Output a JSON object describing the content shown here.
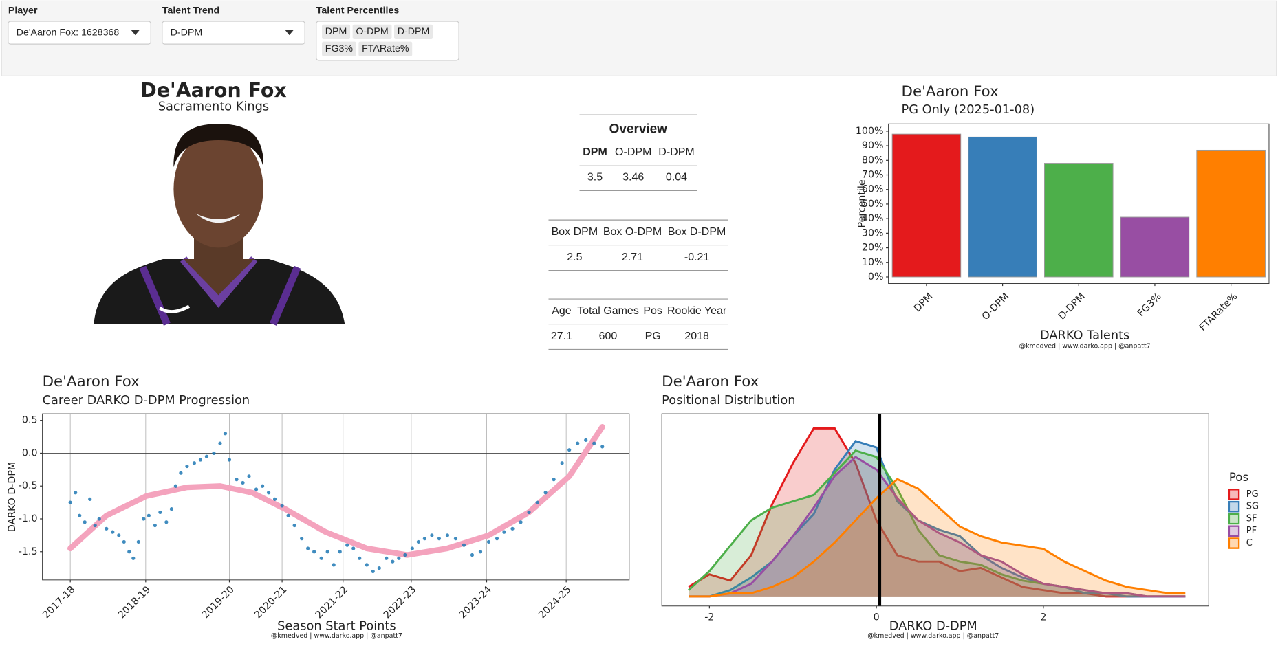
{
  "controls": {
    "player": {
      "label": "Player",
      "value": "De'Aaron Fox: 1628368"
    },
    "trend": {
      "label": "Talent Trend",
      "value": "D-DPM"
    },
    "percentiles": {
      "label": "Talent Percentiles",
      "selected": [
        "DPM",
        "O-DPM",
        "D-DPM",
        "FG3%",
        "FTARate%"
      ]
    }
  },
  "player": {
    "name": "De'Aaron Fox",
    "team": "Sacramento Kings"
  },
  "tables": [
    {
      "title": "Overview",
      "header": [
        "DPM",
        "O-DPM",
        "D-DPM"
      ],
      "rows": [
        [
          3.5,
          3.46,
          0.04
        ]
      ]
    },
    {
      "header": [
        "Box DPM",
        "Box O-DPM",
        "Box D-DPM"
      ],
      "rows": [
        [
          2.5,
          2.71,
          -0.21
        ]
      ]
    },
    {
      "header": [
        "Age",
        "Total Games",
        "Pos",
        "Rookie Year"
      ],
      "rows": [
        [
          27.1,
          600,
          "PG",
          2018
        ]
      ]
    }
  ],
  "chart_data": [
    {
      "type": "bar",
      "title": "De'Aaron Fox",
      "subtitle": "PG Only (2025-01-08)",
      "x_label": "DARKO Talents",
      "y_label": "Percentile",
      "caption": "@kmedved | www.darko.app | @anpatt7",
      "categories": [
        "DPM",
        "O-DPM",
        "D-DPM",
        "FG3%",
        "FTARate%"
      ],
      "values": [
        98,
        96,
        78,
        41,
        87
      ],
      "colors": [
        "#e41a1c",
        "#377eb8",
        "#4daf4a",
        "#984ea3",
        "#ff7f00"
      ],
      "ylim": [
        -4.5,
        105
      ],
      "yticks": [
        {
          "value": 0,
          "label": "0%"
        },
        {
          "value": 10,
          "label": "10%"
        },
        {
          "value": 20,
          "label": "20%"
        },
        {
          "value": 30,
          "label": "30%"
        },
        {
          "value": 40,
          "label": "40%"
        },
        {
          "value": 50,
          "label": "50%"
        },
        {
          "value": 60,
          "label": "60%"
        },
        {
          "value": 70,
          "label": "70%"
        },
        {
          "value": 80,
          "label": "80%"
        },
        {
          "value": 90,
          "label": "90%"
        },
        {
          "value": 100,
          "label": "100%"
        }
      ],
      "grid": false
    },
    {
      "type": "scatter",
      "title": "De'Aaron Fox",
      "subtitle": "Career DARKO D-DPM Progression",
      "x_label": "Season Start Points",
      "y_label": "DARKO D-DPM",
      "caption": "@kmedved | www.darko.app | @anpatt7",
      "color": "#1f78b4",
      "x": [
        0,
        5,
        9,
        14,
        19,
        24,
        28,
        35,
        41,
        47,
        52,
        57,
        61,
        66,
        71,
        76,
        82,
        87,
        93,
        98,
        102,
        107,
        113,
        120,
        126,
        132,
        139,
        145,
        150,
        154,
        161,
        167,
        173,
        180,
        186,
        192,
        198,
        205,
        211,
        217,
        224,
        230,
        236,
        243,
        249,
        255,
        261,
        268,
        274,
        280,
        287,
        293,
        299,
        306,
        312,
        318,
        324,
        331,
        337,
        343,
        350,
        357,
        365,
        373,
        381,
        389,
        397,
        405,
        413,
        420,
        428,
        436,
        444,
        452,
        460,
        468,
        476,
        483,
        491,
        499,
        507,
        515
      ],
      "values": [
        -0.75,
        -0.6,
        -0.95,
        -1.05,
        -0.7,
        -1.1,
        -1.0,
        -1.15,
        -1.2,
        -1.25,
        -1.35,
        -1.5,
        -1.6,
        -1.35,
        -1.0,
        -0.95,
        -1.1,
        -0.9,
        -1.05,
        -0.85,
        -0.5,
        -0.3,
        -0.2,
        -0.15,
        -0.1,
        -0.05,
        0.0,
        0.15,
        0.3,
        -0.1,
        -0.4,
        -0.45,
        -0.35,
        -0.55,
        -0.5,
        -0.6,
        -0.7,
        -0.8,
        -0.95,
        -1.1,
        -1.3,
        -1.45,
        -1.5,
        -1.6,
        -1.5,
        -1.7,
        -1.5,
        -1.4,
        -1.45,
        -1.6,
        -1.7,
        -1.8,
        -1.75,
        -1.6,
        -1.65,
        -1.6,
        -1.55,
        -1.45,
        -1.35,
        -1.3,
        -1.25,
        -1.3,
        -1.25,
        -1.3,
        -1.4,
        -1.55,
        -1.5,
        -1.35,
        -1.3,
        -1.2,
        -1.15,
        -1.05,
        -0.9,
        -0.75,
        -0.6,
        -0.4,
        -0.15,
        0.05,
        0.15,
        0.2,
        0.15,
        0.1
      ],
      "trend": {
        "color": "#f4a3bd",
        "x": [
          0,
          35,
          74,
          113,
          145,
          176,
          208,
          247,
          287,
          326,
          365,
          405,
          444,
          483,
          515
        ],
        "values": [
          -1.45,
          -0.95,
          -0.65,
          -0.52,
          -0.5,
          -0.6,
          -0.85,
          -1.2,
          -1.45,
          -1.55,
          -1.45,
          -1.25,
          -0.9,
          -0.35,
          0.4
        ]
      },
      "hline": 0,
      "xlim": [
        -27,
        541
      ],
      "ylim": [
        -1.93,
        0.6
      ],
      "xticks": [
        {
          "value": 0,
          "label": "2017-18"
        },
        {
          "value": 73,
          "label": "2018-19"
        },
        {
          "value": 154,
          "label": "2019-20"
        },
        {
          "value": 205,
          "label": "2020-21"
        },
        {
          "value": 264,
          "label": "2021-22"
        },
        {
          "value": 330,
          "label": "2022-23"
        },
        {
          "value": 403,
          "label": "2023-24"
        },
        {
          "value": 480,
          "label": "2024-25"
        }
      ],
      "yticks": [
        0.5,
        {
          "value": 0,
          "label": "0.0"
        },
        -0.5,
        {
          "value": -1,
          "label": "-1.0"
        },
        -1.5
      ],
      "grid": true
    },
    {
      "type": "density",
      "title": "De'Aaron Fox",
      "subtitle": "Positional Distribution",
      "x_label": "DARKO D-DPM",
      "caption": "@kmedved | www.darko.app | @anpatt7",
      "legend_title": "Pos",
      "x": [
        -2.25,
        -2,
        -1.75,
        -1.5,
        -1.25,
        -1,
        -0.75,
        -0.5,
        -0.25,
        0,
        0.25,
        0.5,
        0.75,
        1,
        1.25,
        1.5,
        1.75,
        2,
        2.25,
        2.5,
        2.75,
        3,
        3.25,
        3.5,
        3.7
      ],
      "series": [
        {
          "name": "PG",
          "color": "#e41a1c",
          "values": [
            0.03,
            0.07,
            0.05,
            0.13,
            0.29,
            0.42,
            0.53,
            0.53,
            0.42,
            0.24,
            0.13,
            0.11,
            0.11,
            0.08,
            0.09,
            0.06,
            0.03,
            0.02,
            0.01,
            0.01,
            0,
            0,
            0,
            0,
            0
          ]
        },
        {
          "name": "SG",
          "color": "#377eb8",
          "values": [
            0,
            0,
            0.02,
            0.06,
            0.11,
            0.19,
            0.26,
            0.4,
            0.49,
            0.47,
            0.3,
            0.24,
            0.21,
            0.19,
            0.13,
            0.09,
            0.06,
            0.04,
            0.03,
            0.01,
            0.01,
            0,
            0,
            0,
            0
          ]
        },
        {
          "name": "SF",
          "color": "#4daf4a",
          "values": [
            0.02,
            0.08,
            0.16,
            0.24,
            0.28,
            0.3,
            0.32,
            0.39,
            0.46,
            0.44,
            0.34,
            0.21,
            0.13,
            0.11,
            0.1,
            0.07,
            0.05,
            0.04,
            0.03,
            0.02,
            0.01,
            0.01,
            0,
            0,
            0
          ]
        },
        {
          "name": "PF",
          "color": "#984ea3",
          "values": [
            0,
            0,
            0.01,
            0.04,
            0.11,
            0.19,
            0.28,
            0.38,
            0.44,
            0.4,
            0.31,
            0.24,
            0.2,
            0.17,
            0.13,
            0.11,
            0.07,
            0.04,
            0.03,
            0.02,
            0.01,
            0.01,
            0,
            0,
            0
          ]
        },
        {
          "name": "C",
          "color": "#ff7f00",
          "values": [
            0,
            0,
            0.01,
            0.01,
            0.03,
            0.06,
            0.11,
            0.17,
            0.24,
            0.31,
            0.37,
            0.34,
            0.28,
            0.22,
            0.19,
            0.17,
            0.16,
            0.15,
            0.11,
            0.08,
            0.05,
            0.03,
            0.02,
            0.01,
            0.01
          ]
        }
      ],
      "vline": 0.04,
      "xlim": [
        -2.57,
        3.98
      ],
      "ylim": [
        -0.03,
        0.576
      ],
      "xticks": [
        -2,
        0,
        2
      ],
      "grid": false
    }
  ]
}
